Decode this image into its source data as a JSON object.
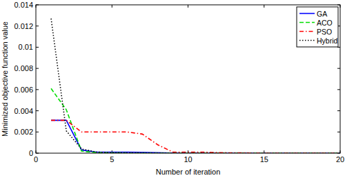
{
  "chart_data": {
    "type": "line",
    "x_label": "Number of iteration",
    "y_label": "Minimized objective function value",
    "x": [
      1,
      2,
      3,
      4,
      5,
      6,
      7,
      8,
      9,
      10,
      11,
      12,
      13,
      14,
      15,
      16,
      17,
      18,
      19,
      20
    ],
    "series": [
      {
        "name": "GA",
        "color": "#0000ff",
        "line_style": "solid",
        "values": [
          0.0031,
          0.0031,
          0.0003,
          0.0001,
          0.0001,
          0.0001,
          8e-05,
          5e-05,
          2e-05,
          1e-05,
          0,
          0,
          0,
          0,
          0,
          0,
          0,
          0,
          0,
          0
        ]
      },
      {
        "name": "ACO",
        "color": "#00dd00",
        "line_style": "dashed",
        "values": [
          0.0061,
          0.0041,
          0.0002,
          5e-05,
          3e-05,
          2e-05,
          1e-05,
          0,
          0,
          0,
          0,
          0,
          0,
          0,
          0,
          0,
          0,
          0,
          0,
          0
        ]
      },
      {
        "name": "PSO",
        "color": "#ff0000",
        "line_style": "dashdot",
        "values": [
          0.0031,
          0.0031,
          0.002,
          0.002,
          0.002,
          0.002,
          0.0018,
          0.0008,
          0.0001,
          0.0001,
          0.0001,
          5e-05,
          3e-05,
          2e-05,
          0,
          0,
          0,
          0,
          0,
          0
        ]
      },
      {
        "name": "Hybrid",
        "color": "#000000",
        "line_style": "dotted",
        "values": [
          0.0127,
          0.0021,
          0.0004,
          0.0001,
          5e-05,
          3e-05,
          2e-05,
          1e-05,
          0,
          0,
          0,
          0,
          0,
          0,
          0,
          0,
          0,
          0,
          0,
          0
        ]
      }
    ],
    "xlim": [
      0,
      20
    ],
    "xticks": [
      0,
      5,
      10,
      15,
      20
    ],
    "ylim": [
      0,
      0.014
    ],
    "yticks": [
      0,
      0.002,
      0.004,
      0.006,
      0.008,
      0.01,
      0.012,
      0.014
    ],
    "legend": "top-right",
    "grid": false
  }
}
